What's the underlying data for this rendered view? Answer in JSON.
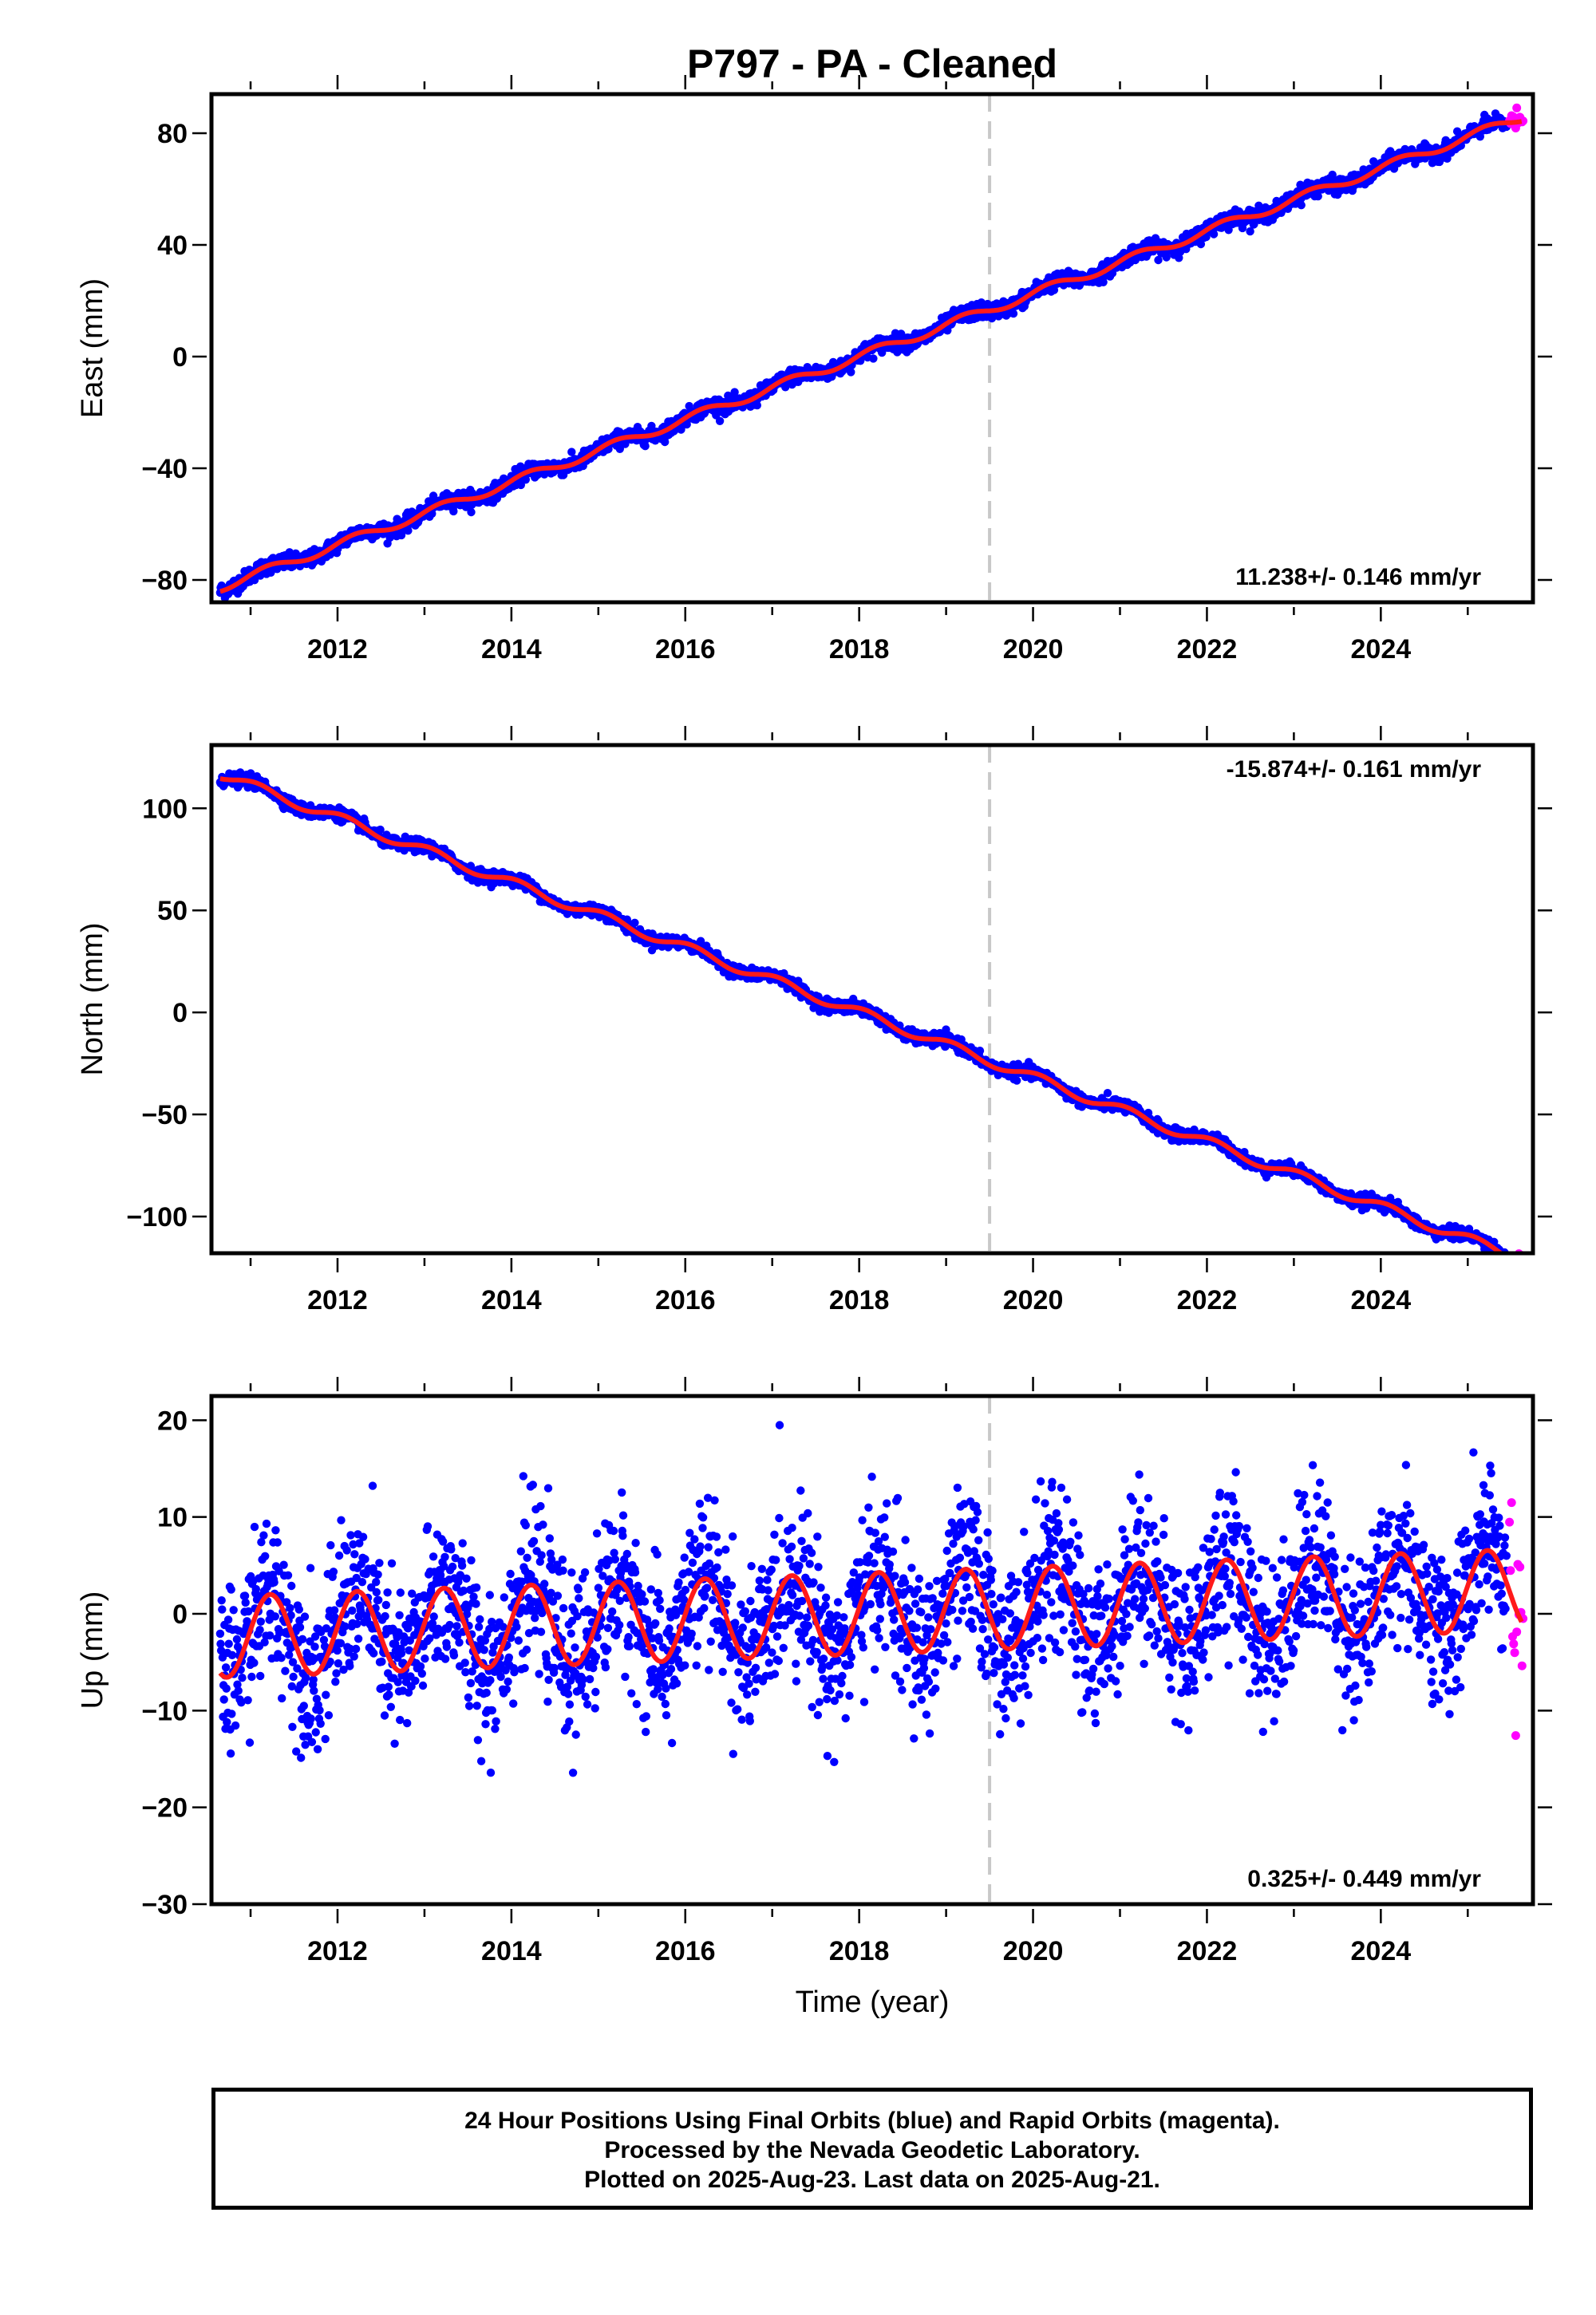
{
  "title": "P797  - PA - Cleaned",
  "chart_data": [
    {
      "type": "scatter",
      "panel": "east",
      "ylabel": "East (mm)",
      "xlim": [
        2010.55,
        2025.75
      ],
      "ylim": [
        -88,
        94
      ],
      "yticks": [
        -80,
        -40,
        0,
        40,
        80
      ],
      "xticks": [
        2012,
        2014,
        2016,
        2018,
        2020,
        2022,
        2024
      ],
      "rate_text": "11.238+/- 0.146 mm/yr",
      "rate_position": "bottom-right",
      "event_year": 2019.5,
      "model": {
        "offset_at_2018": 0.0,
        "rate": 11.238,
        "t_start": 2010.65,
        "t_end": 2025.62,
        "seasonal": [
          {
            "amplitude": 1.6,
            "period": 1.0,
            "phase": 0.3
          }
        ],
        "scatter_sd": 1.4
      },
      "final_orbit_series": {
        "name": "Final Orbits",
        "color": "#0000ff",
        "t_range": [
          2010.65,
          2025.45
        ]
      },
      "rapid_orbit_series": {
        "name": "Rapid Orbits",
        "color": "#ff00ff",
        "t_range": [
          2025.48,
          2025.64
        ]
      }
    },
    {
      "type": "scatter",
      "panel": "north",
      "ylabel": "North (mm)",
      "xlim": [
        2010.55,
        2025.75
      ],
      "ylim": [
        -118,
        131
      ],
      "yticks": [
        -100,
        -50,
        0,
        50,
        100
      ],
      "xticks": [
        2012,
        2014,
        2016,
        2018,
        2020,
        2022,
        2024
      ],
      "rate_text": "-15.874+/- 0.161 mm/yr",
      "rate_position": "top-right",
      "event_year": 2019.5,
      "model": {
        "offset_at_2018": 0.0,
        "rate": -15.874,
        "t_start": 2010.65,
        "t_end": 2025.62,
        "seasonal": [
          {
            "amplitude": 2.4,
            "period": 1.0,
            "phase": 1.1
          }
        ],
        "scatter_sd": 1.5
      },
      "final_orbit_series": {
        "name": "Final Orbits",
        "color": "#0000ff",
        "t_range": [
          2010.65,
          2025.45
        ]
      },
      "rapid_orbit_series": {
        "name": "Rapid Orbits",
        "color": "#ff00ff",
        "t_range": [
          2025.48,
          2025.64
        ]
      }
    },
    {
      "type": "scatter",
      "panel": "up",
      "ylabel": "Up (mm)",
      "xlabel": "Time (year)",
      "xlim": [
        2010.55,
        2025.75
      ],
      "ylim": [
        -30,
        22.5
      ],
      "yticks": [
        -30,
        -20,
        -10,
        0,
        10,
        20
      ],
      "xticks": [
        2012,
        2014,
        2016,
        2018,
        2020,
        2022,
        2024
      ],
      "rate_text": "0.325+/- 0.449 mm/yr",
      "rate_position": "bottom-right",
      "event_year": 2019.5,
      "model": {
        "offset_at_2018": 0.0,
        "rate": 0.325,
        "t_start": 2010.65,
        "t_end": 2025.62,
        "seasonal": [
          {
            "amplitude": 4.2,
            "period": 1.0,
            "phase": 0.15
          }
        ],
        "scatter_sd": 4.0
      },
      "final_orbit_series": {
        "name": "Final Orbits",
        "color": "#0000ff",
        "t_range": [
          2010.65,
          2025.45
        ]
      },
      "rapid_orbit_series": {
        "name": "Rapid Orbits",
        "color": "#ff00ff",
        "t_range": [
          2025.48,
          2025.64
        ]
      }
    }
  ],
  "caption": {
    "line1": "24 Hour Positions Using Final Orbits (blue) and Rapid Orbits (magenta).",
    "line2": "Processed by the Nevada Geodetic Laboratory.",
    "line3": "Plotted on 2025-Aug-23. Last data on 2025-Aug-21."
  },
  "colors": {
    "final_orbits": "#0000ff",
    "rapid_orbits": "#ff00ff",
    "model": "#ff1a1a",
    "event_line": "#c8c8c8"
  }
}
